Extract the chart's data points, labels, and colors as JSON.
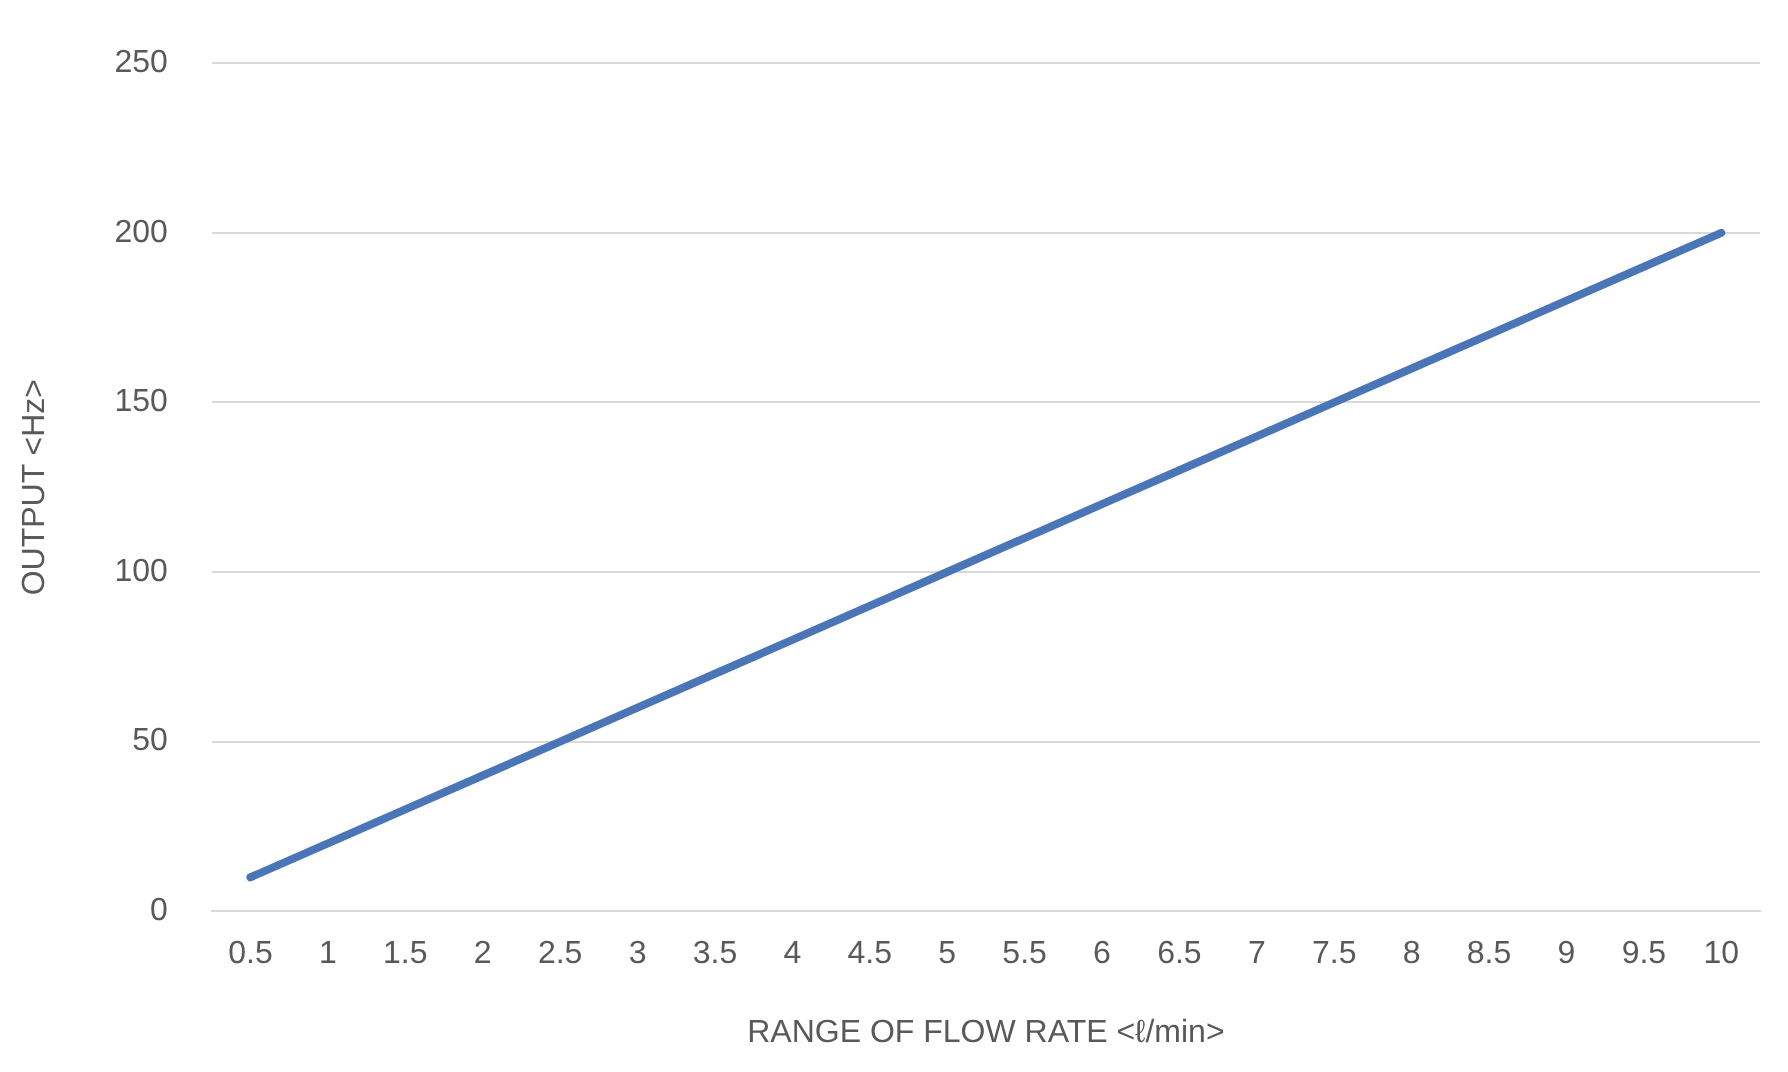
{
  "chart_data": {
    "type": "line",
    "xlabel": "RANGE OF FLOW RATE <ℓ/min>",
    "ylabel": "OUTPUT <Hz>",
    "categories": [
      "0.5",
      "1",
      "1.5",
      "2",
      "2.5",
      "3",
      "3.5",
      "4",
      "4.5",
      "5",
      "5.5",
      "6",
      "6.5",
      "7",
      "7.5",
      "8",
      "8.5",
      "9",
      "9.5",
      "10"
    ],
    "series": [
      {
        "color": "#4a76b8",
        "values": [
          10,
          20,
          30,
          40,
          50,
          60,
          70,
          80,
          90,
          100,
          110,
          120,
          130,
          140,
          150,
          160,
          170,
          180,
          190,
          200
        ]
      }
    ],
    "ylim": [
      0,
      250
    ],
    "yticks": [
      0,
      50,
      100,
      150,
      200,
      250
    ],
    "grid": "y",
    "legend": false,
    "marker": "none",
    "line_style": "solid"
  }
}
